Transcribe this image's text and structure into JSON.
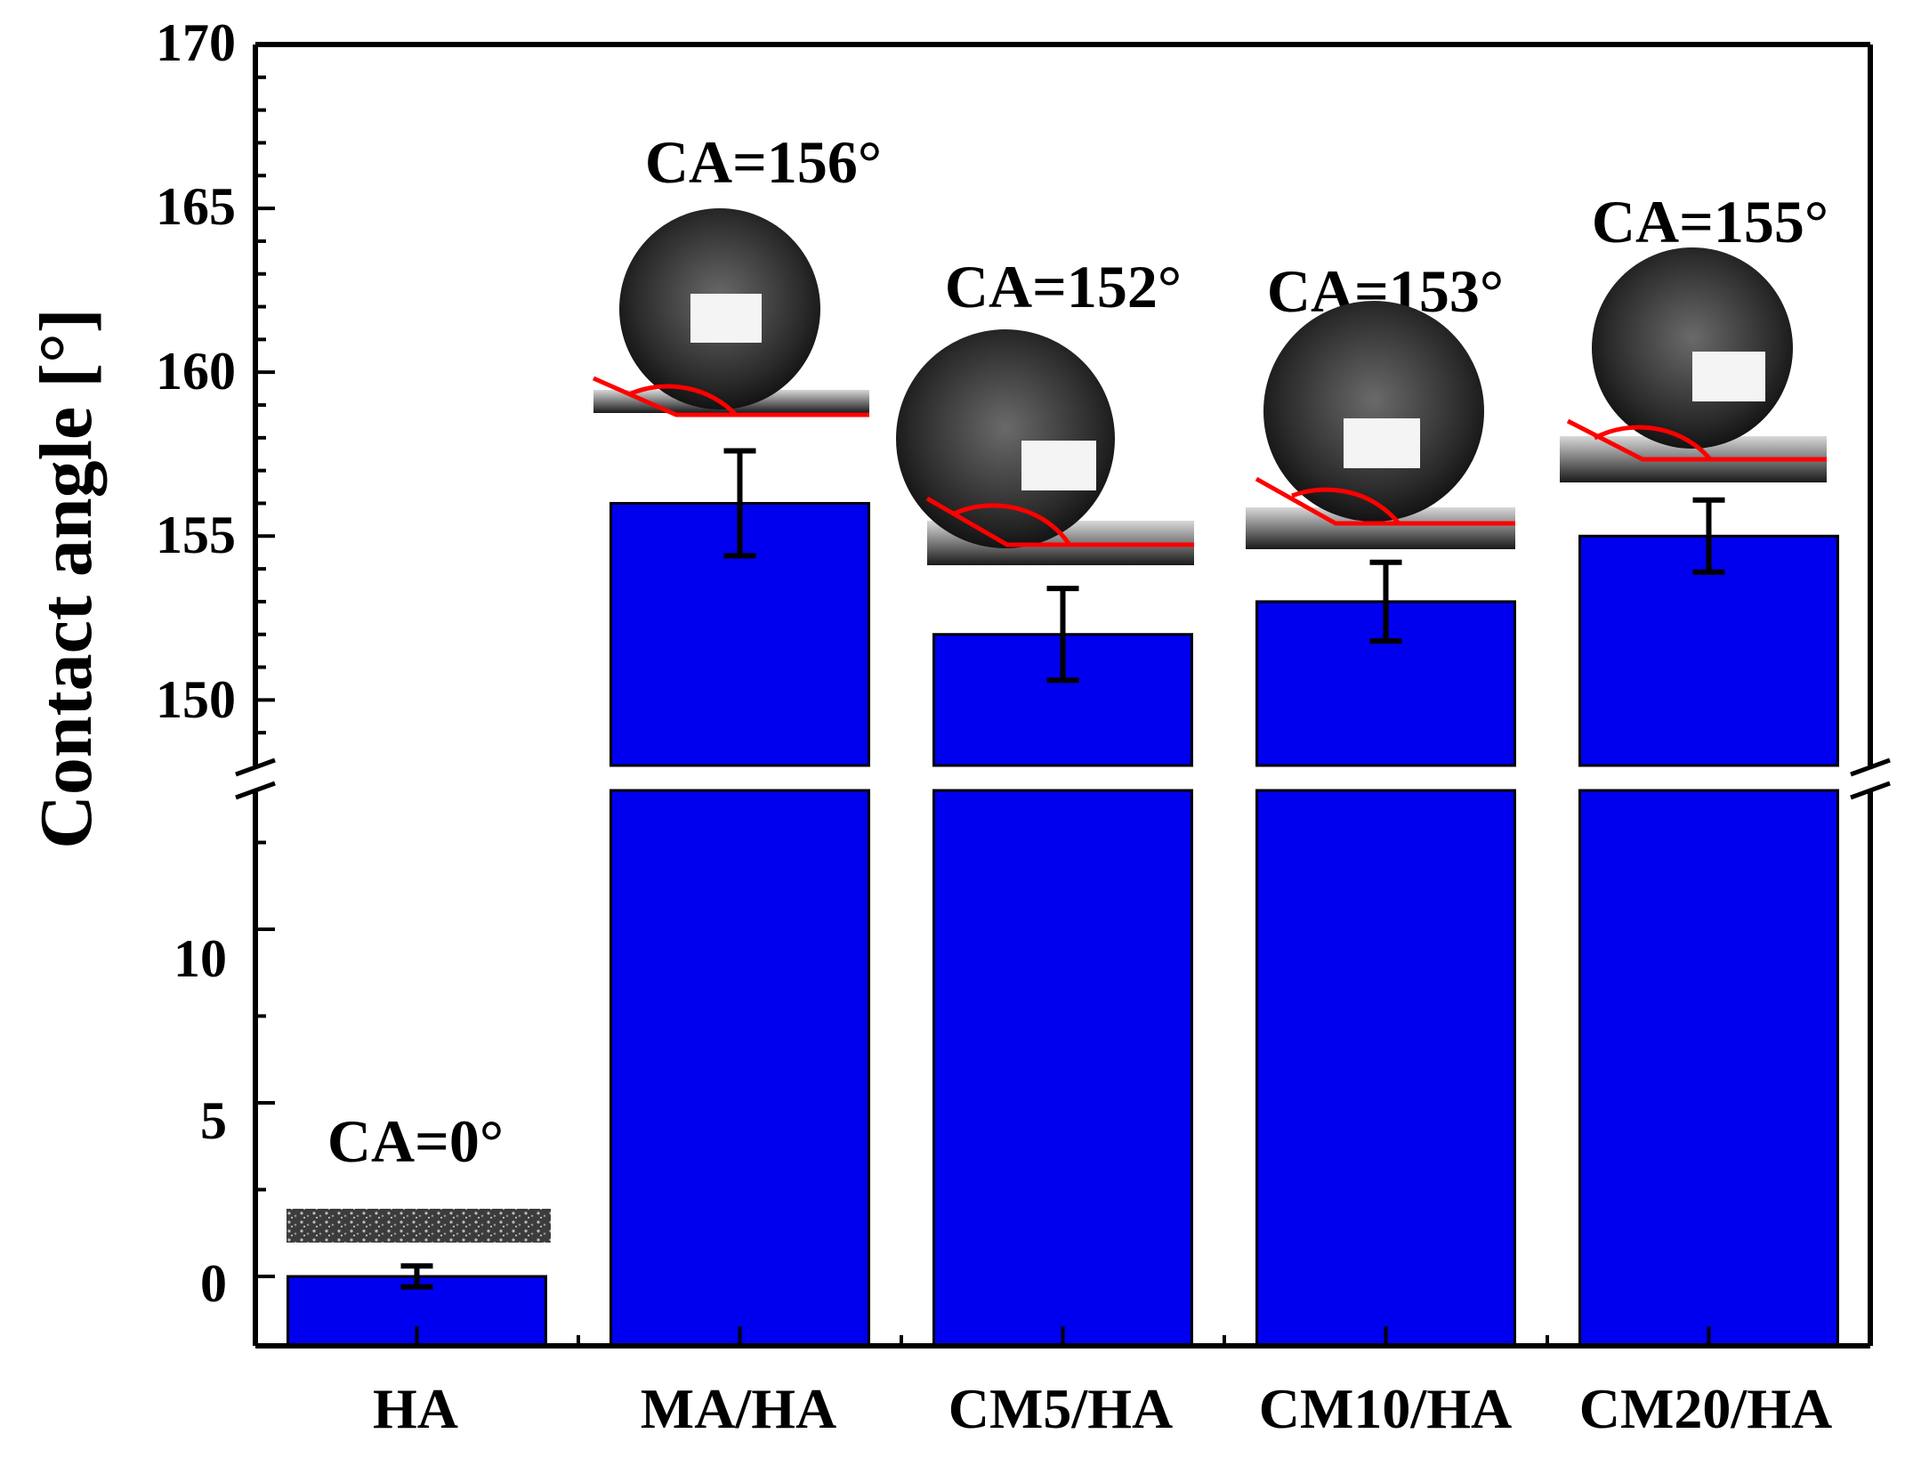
{
  "chart_data": {
    "type": "bar",
    "title": "",
    "xlabel": "",
    "ylabel": "Contact angle [°]",
    "y_axis_break": {
      "lower_range": [
        -2,
        14
      ],
      "upper_range": [
        148,
        170
      ]
    },
    "yticks_lower": [
      "0",
      "5",
      "10"
    ],
    "yticks_upper": [
      "150",
      "155",
      "160",
      "165",
      "170"
    ],
    "categories": [
      "HA",
      "MA/HA",
      "CM5/HA",
      "CM10/HA",
      "CM20/HA"
    ],
    "values": [
      0,
      156,
      152,
      153,
      155
    ],
    "errors": [
      0.3,
      1.6,
      1.4,
      1.2,
      1.1
    ],
    "annotations": [
      "CA=0°",
      "CA=156°",
      "CA=152°",
      "CA=153°",
      "CA=155°"
    ],
    "bar_color": "#0000ee",
    "edge_color": "#000000",
    "droplet_line_color": "#ff0000"
  }
}
